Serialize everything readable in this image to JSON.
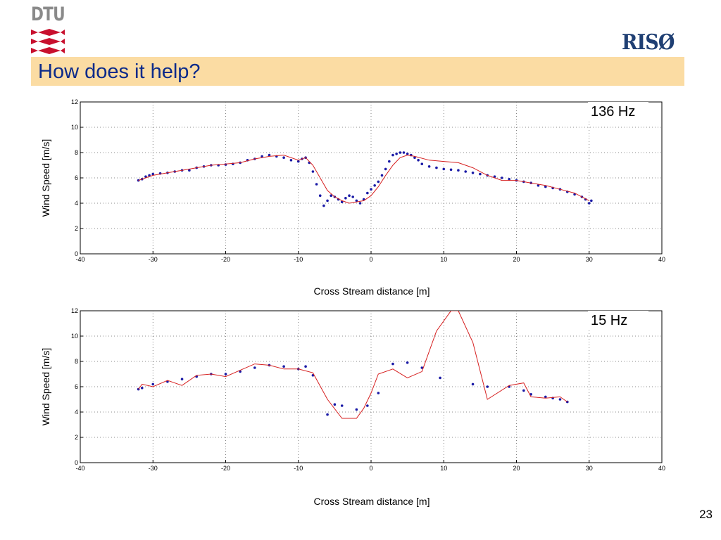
{
  "header": {
    "dtu_logo_text": "DTU",
    "riso_logo_text": "RISØ",
    "title": "How does it help?",
    "title_color": "#0b2a8a",
    "title_bar_color": "#fbdca3",
    "dtu_red": "#c8102e"
  },
  "page_number": "23",
  "chart_data": [
    {
      "type": "scatter",
      "annotation": "136 Hz",
      "xlabel": "Cross Stream distance  [m]",
      "ylabel": "Wind Speed [m/s]",
      "xlim": [
        -40,
        40
      ],
      "ylim": [
        0,
        12
      ],
      "xticks": [
        "-40",
        "-30",
        "-20",
        "-10",
        "0",
        "10",
        "20",
        "30",
        "40"
      ],
      "yticks": [
        "0",
        "2",
        "4",
        "6",
        "8",
        "10",
        "12"
      ],
      "grid": true,
      "series": [
        {
          "style": "points",
          "color": "#1a1aa6",
          "x": [
            -32,
            -31.5,
            -31,
            -30.5,
            -30,
            -29,
            -28,
            -27,
            -26,
            -25,
            -24,
            -23,
            -22,
            -21,
            -20,
            -19,
            -18,
            -17,
            -16,
            -15,
            -14,
            -13,
            -12,
            -11,
            -10,
            -9.5,
            -9,
            -8.5,
            -8,
            -7.5,
            -7,
            -6.5,
            -6,
            -5.5,
            -5,
            -4.5,
            -4,
            -3.5,
            -3,
            -2.5,
            -2,
            -1.5,
            -1,
            -0.5,
            0,
            0.5,
            1,
            1.5,
            2,
            2.5,
            3,
            3.5,
            4,
            4.5,
            5,
            5.5,
            6,
            6.5,
            7,
            8,
            9,
            10,
            11,
            12,
            13,
            14,
            15,
            16,
            17,
            18,
            19,
            20,
            21,
            22,
            23,
            24,
            25,
            26,
            27,
            28,
            29,
            29.5,
            30,
            30.3
          ],
          "y": [
            5.8,
            5.9,
            6.1,
            6.2,
            6.3,
            6.35,
            6.4,
            6.5,
            6.6,
            6.6,
            6.8,
            6.9,
            7.0,
            7.0,
            7.05,
            7.1,
            7.2,
            7.4,
            7.5,
            7.7,
            7.8,
            7.7,
            7.6,
            7.4,
            7.3,
            7.5,
            7.6,
            7.2,
            6.5,
            5.5,
            4.6,
            3.8,
            4.2,
            4.6,
            4.5,
            4.3,
            4.1,
            4.4,
            4.6,
            4.5,
            4.2,
            4.0,
            4.3,
            4.8,
            5.1,
            5.4,
            5.7,
            6.2,
            6.7,
            7.3,
            7.8,
            7.9,
            8.0,
            8.0,
            7.9,
            7.8,
            7.6,
            7.4,
            7.1,
            6.9,
            6.8,
            6.7,
            6.65,
            6.6,
            6.5,
            6.4,
            6.3,
            6.2,
            6.1,
            6.0,
            5.9,
            5.8,
            5.7,
            5.6,
            5.4,
            5.3,
            5.2,
            5.1,
            4.9,
            4.7,
            4.5,
            4.3,
            4.0,
            4.2
          ]
        },
        {
          "style": "line",
          "color": "#d62020",
          "x": [
            -32,
            -31,
            -30,
            -28,
            -26,
            -24,
            -22,
            -20,
            -18,
            -16,
            -14,
            -12,
            -10,
            -9,
            -8,
            -7,
            -6,
            -5,
            -4,
            -3,
            -2,
            -1,
            0,
            1,
            2,
            3,
            4,
            5,
            6,
            8,
            10,
            12,
            14,
            16,
            18,
            20,
            22,
            24,
            26,
            28,
            30
          ],
          "y": [
            5.8,
            6.0,
            6.2,
            6.4,
            6.6,
            6.8,
            7.0,
            7.1,
            7.2,
            7.5,
            7.7,
            7.8,
            7.4,
            7.6,
            7.0,
            6.0,
            5.0,
            4.5,
            4.2,
            4.0,
            4.1,
            4.2,
            4.6,
            5.3,
            6.2,
            7.0,
            7.6,
            7.8,
            7.7,
            7.4,
            7.3,
            7.2,
            6.8,
            6.2,
            5.8,
            5.8,
            5.6,
            5.4,
            5.1,
            4.8,
            4.2
          ]
        }
      ]
    },
    {
      "type": "scatter",
      "annotation": "15 Hz",
      "xlabel": "Cross Stream distance  [m]",
      "ylabel": "Wind Speed [m/s]",
      "xlim": [
        -40,
        40
      ],
      "ylim": [
        0,
        12
      ],
      "xticks": [
        "-40",
        "-30",
        "-20",
        "-10",
        "0",
        "10",
        "20",
        "30",
        "40"
      ],
      "yticks": [
        "0",
        "2",
        "4",
        "6",
        "8",
        "10",
        "12"
      ],
      "grid": true,
      "series": [
        {
          "style": "points",
          "color": "#1a1aa6",
          "x": [
            -32,
            -31.5,
            -30,
            -28,
            -26,
            -24,
            -22,
            -20,
            -18,
            -16,
            -14,
            -12,
            -10,
            -9,
            -8,
            -6,
            -5,
            -4,
            -2,
            -0.5,
            1,
            3,
            5,
            7,
            9.5,
            14,
            16,
            19,
            21,
            22,
            24,
            25,
            26,
            27
          ],
          "y": [
            5.8,
            5.9,
            6.2,
            6.4,
            6.6,
            6.8,
            7.0,
            7.0,
            7.2,
            7.5,
            7.7,
            7.6,
            7.4,
            7.6,
            6.9,
            3.8,
            4.6,
            4.5,
            4.2,
            4.5,
            5.5,
            7.8,
            7.9,
            7.5,
            6.7,
            6.2,
            6.0,
            6.0,
            5.7,
            5.4,
            5.2,
            5.1,
            5.0,
            4.8
          ]
        },
        {
          "style": "line",
          "color": "#d62020",
          "x": [
            -32,
            -31.5,
            -30,
            -28,
            -26,
            -24,
            -22,
            -20,
            -18,
            -16,
            -14,
            -12,
            -10,
            -8,
            -6,
            -4,
            -2,
            -1,
            0,
            1,
            3,
            5,
            7,
            9,
            11,
            12,
            14,
            16,
            19,
            21,
            22,
            24,
            26,
            27
          ],
          "y": [
            5.8,
            6.2,
            6.0,
            6.5,
            6.1,
            6.9,
            7.0,
            6.8,
            7.3,
            7.8,
            7.7,
            7.4,
            7.4,
            7.1,
            5.0,
            3.5,
            3.5,
            4.3,
            5.5,
            7.0,
            7.4,
            6.7,
            7.2,
            10.4,
            12.0,
            12.0,
            9.5,
            5.0,
            6.1,
            6.3,
            5.2,
            5.1,
            5.2,
            4.8
          ]
        }
      ]
    }
  ]
}
